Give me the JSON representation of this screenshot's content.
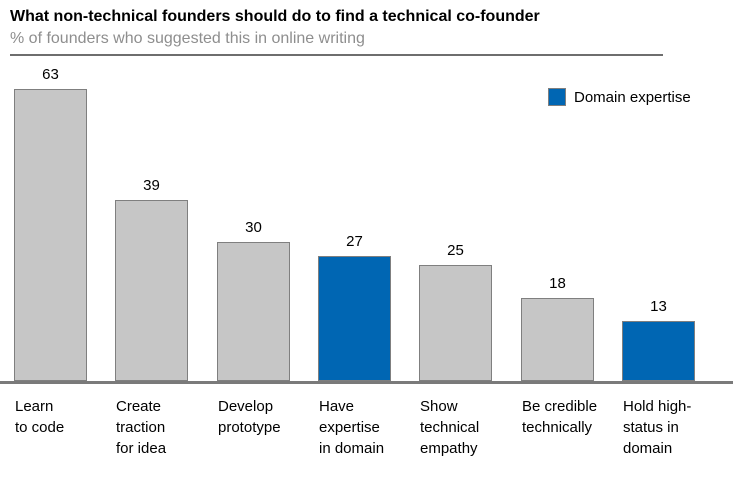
{
  "header": {
    "title": "What non-technical founders should do to find a technical co-founder",
    "subtitle": "% of founders who suggested this in online writing"
  },
  "legend": {
    "label": "Domain expertise"
  },
  "colors": {
    "highlight_blue": "#0066B3",
    "bar_gray": "#C6C6C6",
    "bar_border": "#7F7F7F",
    "axis_gray": "#7A7A7A",
    "subtitle_gray": "#8E8E8E",
    "divider_gray": "#6E6E6E"
  },
  "chart_data": {
    "type": "bar",
    "title": "What non-technical founders should do to find a technical co-founder",
    "subtitle": "% of founders who suggested this in online writing",
    "categories": [
      "Learn to code",
      "Create traction for idea",
      "Develop prototype",
      "Have expertise in domain",
      "Show technical empathy",
      "Be credible technically",
      "Hold high-status in domain"
    ],
    "values": [
      63,
      39,
      30,
      27,
      25,
      18,
      13
    ],
    "value_labels": [
      "63",
      "39",
      "30",
      "27",
      "25",
      "18",
      "13"
    ],
    "bar_colors": [
      "gray",
      "gray",
      "gray",
      "blue",
      "gray",
      "gray",
      "blue"
    ],
    "category_label_lines": [
      [
        "Learn",
        "to code"
      ],
      [
        "Create",
        "traction",
        "for idea"
      ],
      [
        "Develop",
        "prototype"
      ],
      [
        "Have",
        "expertise",
        "in domain"
      ],
      [
        "Show",
        "technical",
        "empathy"
      ],
      [
        "Be credible",
        "technically"
      ],
      [
        "Hold high-",
        "status in",
        "domain"
      ]
    ],
    "ylim": [
      0,
      63
    ],
    "grid": false,
    "y_axis_visible": false,
    "x_baseline_visible": true,
    "legend": {
      "label": "Domain expertise",
      "position": "top-right",
      "applies_to": [
        "Have expertise in domain",
        "Hold high-status in domain"
      ]
    }
  }
}
